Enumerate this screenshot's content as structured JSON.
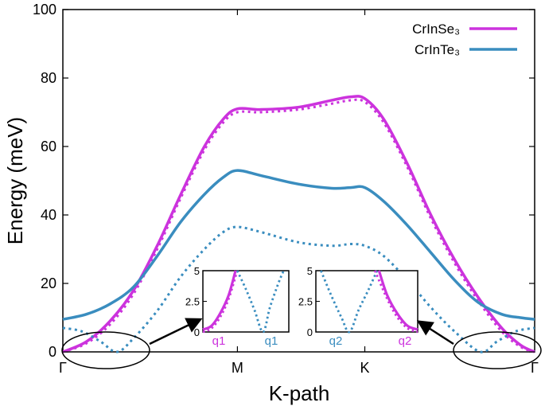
{
  "chart_data": {
    "type": "line",
    "title": "",
    "xlabel": "K-path",
    "ylabel": "Energy (meV)",
    "ylim": [
      0,
      100
    ],
    "y_ticks": [
      0,
      20,
      40,
      60,
      80,
      100
    ],
    "x_range": [
      0,
      1
    ],
    "x_ticks": [
      {
        "label": "Γ",
        "x": 0
      },
      {
        "label": "M",
        "x": 0.37
      },
      {
        "label": "K",
        "x": 0.64
      },
      {
        "label": "Γ",
        "x": 1
      }
    ],
    "legend_position": "top-right",
    "series": [
      {
        "name": "CrInSe₃",
        "color": "#cc33dd",
        "style": "solid",
        "in_legend": true,
        "points": [
          [
            0,
            0
          ],
          [
            0.05,
            3
          ],
          [
            0.1,
            9
          ],
          [
            0.15,
            18
          ],
          [
            0.2,
            31
          ],
          [
            0.25,
            46
          ],
          [
            0.3,
            60
          ],
          [
            0.34,
            68
          ],
          [
            0.37,
            71
          ],
          [
            0.42,
            70.8
          ],
          [
            0.5,
            71.5
          ],
          [
            0.57,
            73.5
          ],
          [
            0.61,
            74.5
          ],
          [
            0.64,
            74
          ],
          [
            0.68,
            68
          ],
          [
            0.73,
            55
          ],
          [
            0.78,
            40
          ],
          [
            0.83,
            27
          ],
          [
            0.88,
            16
          ],
          [
            0.93,
            7
          ],
          [
            0.97,
            2
          ],
          [
            1,
            0
          ]
        ]
      },
      {
        "name": "CrInSe₃ (dotted)",
        "color": "#cc33dd",
        "style": "dotted",
        "in_legend": false,
        "points": [
          [
            0,
            0
          ],
          [
            0.05,
            2.5
          ],
          [
            0.1,
            8
          ],
          [
            0.15,
            17
          ],
          [
            0.2,
            30
          ],
          [
            0.25,
            45
          ],
          [
            0.3,
            59
          ],
          [
            0.34,
            67
          ],
          [
            0.37,
            70
          ],
          [
            0.42,
            70
          ],
          [
            0.5,
            70.8
          ],
          [
            0.57,
            72.5
          ],
          [
            0.61,
            73.5
          ],
          [
            0.64,
            73
          ],
          [
            0.68,
            67
          ],
          [
            0.73,
            54
          ],
          [
            0.78,
            39
          ],
          [
            0.83,
            26
          ],
          [
            0.88,
            15
          ],
          [
            0.93,
            6
          ],
          [
            0.97,
            1.5
          ],
          [
            1,
            0
          ]
        ]
      },
      {
        "name": "CrInTe₃",
        "color": "#3a8dbf",
        "style": "solid",
        "in_legend": true,
        "points": [
          [
            0,
            9.5
          ],
          [
            0.05,
            11
          ],
          [
            0.1,
            14
          ],
          [
            0.15,
            19
          ],
          [
            0.2,
            28
          ],
          [
            0.25,
            38
          ],
          [
            0.3,
            46
          ],
          [
            0.34,
            51
          ],
          [
            0.37,
            53
          ],
          [
            0.42,
            51.5
          ],
          [
            0.5,
            49
          ],
          [
            0.57,
            47.8
          ],
          [
            0.61,
            48
          ],
          [
            0.64,
            48
          ],
          [
            0.68,
            44
          ],
          [
            0.73,
            37
          ],
          [
            0.78,
            29
          ],
          [
            0.83,
            21
          ],
          [
            0.88,
            14.5
          ],
          [
            0.93,
            11
          ],
          [
            0.97,
            10
          ],
          [
            1,
            9.5
          ]
        ]
      },
      {
        "name": "CrInTe₃ (dotted)",
        "color": "#3a8dbf",
        "style": "dotted",
        "in_legend": false,
        "points": [
          [
            0,
            7
          ],
          [
            0.04,
            6
          ],
          [
            0.08,
            3
          ],
          [
            0.115,
            0
          ],
          [
            0.15,
            4
          ],
          [
            0.2,
            12
          ],
          [
            0.25,
            22
          ],
          [
            0.3,
            30
          ],
          [
            0.34,
            35
          ],
          [
            0.37,
            36.5
          ],
          [
            0.42,
            35
          ],
          [
            0.5,
            32
          ],
          [
            0.57,
            31
          ],
          [
            0.61,
            31.5
          ],
          [
            0.64,
            31
          ],
          [
            0.68,
            28
          ],
          [
            0.73,
            21
          ],
          [
            0.78,
            13
          ],
          [
            0.83,
            6
          ],
          [
            0.885,
            0
          ],
          [
            0.92,
            3
          ],
          [
            0.96,
            6
          ],
          [
            1,
            7
          ]
        ]
      }
    ],
    "insets": [
      {
        "ylim": [
          0,
          5
        ],
        "y_ticks": [
          0,
          2.5,
          5
        ],
        "x_labels": [
          {
            "text": "q1",
            "color": "#cc33dd"
          },
          {
            "text": "q1",
            "color": "#3a8dbf"
          }
        ],
        "curves": [
          {
            "color": "#cc33dd",
            "style": "solid",
            "points": [
              [
                0,
                0.2
              ],
              [
                0.1,
                0.5
              ],
              [
                0.2,
                1.5
              ],
              [
                0.3,
                3
              ],
              [
                0.38,
                5
              ]
            ]
          },
          {
            "color": "#cc33dd",
            "style": "dotted",
            "points": [
              [
                0,
                0
              ],
              [
                0.1,
                0.3
              ],
              [
                0.2,
                1.2
              ],
              [
                0.3,
                2.7
              ],
              [
                0.4,
                5
              ]
            ]
          },
          {
            "color": "#3a8dbf",
            "style": "dotted",
            "points": [
              [
                0.4,
                5
              ],
              [
                0.5,
                3.5
              ],
              [
                0.6,
                1.8
              ],
              [
                0.7,
                0
              ],
              [
                0.78,
                2
              ],
              [
                0.88,
                4
              ],
              [
                0.94,
                5
              ]
            ]
          }
        ]
      },
      {
        "ylim": [
          0,
          5
        ],
        "y_ticks": [
          0,
          2.5,
          5
        ],
        "x_labels": [
          {
            "text": "q2",
            "color": "#3a8dbf"
          },
          {
            "text": "q2",
            "color": "#cc33dd"
          }
        ],
        "curves": [
          {
            "color": "#3a8dbf",
            "style": "dotted",
            "points": [
              [
                0.05,
                5
              ],
              [
                0.15,
                3
              ],
              [
                0.25,
                1.2
              ],
              [
                0.33,
                0
              ],
              [
                0.42,
                1.8
              ],
              [
                0.52,
                3.5
              ],
              [
                0.6,
                5
              ]
            ]
          },
          {
            "color": "#cc33dd",
            "style": "dotted",
            "points": [
              [
                0.58,
                5
              ],
              [
                0.7,
                2.7
              ],
              [
                0.8,
                1.2
              ],
              [
                0.9,
                0.3
              ],
              [
                1,
                0
              ]
            ]
          },
          {
            "color": "#cc33dd",
            "style": "solid",
            "points": [
              [
                0.62,
                5
              ],
              [
                0.7,
                3
              ],
              [
                0.8,
                1.5
              ],
              [
                0.9,
                0.5
              ],
              [
                1,
                0.2
              ]
            ]
          }
        ]
      }
    ]
  }
}
